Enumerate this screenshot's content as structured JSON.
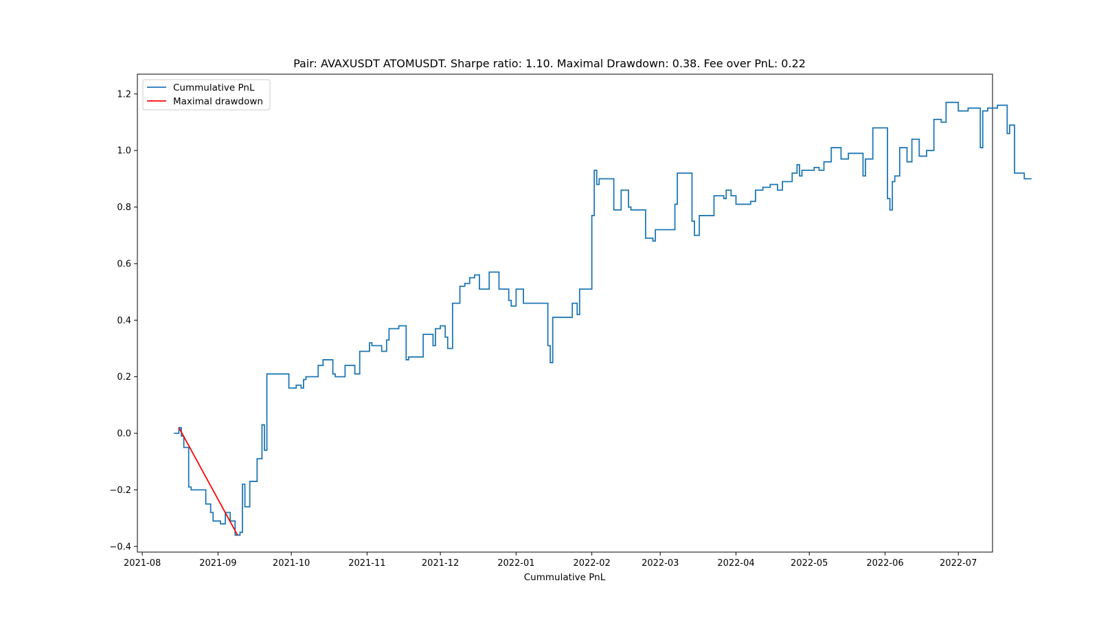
{
  "chart_data": {
    "type": "line",
    "title": "Pair: AVAXUSDT ATOMUSDT. Sharpe ratio: 1.10. Maximal Drawdown: 0.38. Fee over PnL: 0.22",
    "xlabel": "Cummulative PnL",
    "ylabel": "",
    "xlim": [
      "2021-07-30",
      "2022-07-15"
    ],
    "ylim": [
      -0.42,
      1.27
    ],
    "x_ticks": [
      "2021-08",
      "2021-09",
      "2021-10",
      "2021-11",
      "2021-12",
      "2022-01",
      "2022-02",
      "2022-03",
      "2022-04",
      "2022-05",
      "2022-06",
      "2022-07"
    ],
    "y_ticks": [
      "−0.4",
      "−0.2",
      "0.0",
      "0.2",
      "0.4",
      "0.6",
      "0.8",
      "1.0",
      "1.2"
    ],
    "grid": false,
    "legend": "top-left",
    "colors": {
      "pnl": "#1f77b4",
      "drawdown": "#ff0000"
    },
    "series": [
      {
        "name": "Cummulative PnL",
        "step": true,
        "points": [
          [
            "2021-08-14",
            0.0
          ],
          [
            "2021-08-16",
            0.02
          ],
          [
            "2021-08-17",
            -0.01
          ],
          [
            "2021-08-18",
            -0.05
          ],
          [
            "2021-08-20",
            -0.19
          ],
          [
            "2021-08-21",
            -0.2
          ],
          [
            "2021-08-27",
            -0.25
          ],
          [
            "2021-08-29",
            -0.28
          ],
          [
            "2021-08-30",
            -0.31
          ],
          [
            "2021-09-02",
            -0.32
          ],
          [
            "2021-09-04",
            -0.28
          ],
          [
            "2021-09-06",
            -0.31
          ],
          [
            "2021-09-08",
            -0.36
          ],
          [
            "2021-09-10",
            -0.35
          ],
          [
            "2021-09-11",
            -0.18
          ],
          [
            "2021-09-12",
            -0.26
          ],
          [
            "2021-09-14",
            -0.17
          ],
          [
            "2021-09-17",
            -0.09
          ],
          [
            "2021-09-19",
            0.03
          ],
          [
            "2021-09-20",
            -0.06
          ],
          [
            "2021-09-21",
            0.21
          ],
          [
            "2021-09-30",
            0.16
          ],
          [
            "2021-10-03",
            0.17
          ],
          [
            "2021-10-05",
            0.16
          ],
          [
            "2021-10-06",
            0.19
          ],
          [
            "2021-10-07",
            0.2
          ],
          [
            "2021-10-12",
            0.24
          ],
          [
            "2021-10-14",
            0.26
          ],
          [
            "2021-10-18",
            0.21
          ],
          [
            "2021-10-19",
            0.2
          ],
          [
            "2021-10-23",
            0.24
          ],
          [
            "2021-10-27",
            0.21
          ],
          [
            "2021-10-29",
            0.29
          ],
          [
            "2021-11-02",
            0.32
          ],
          [
            "2021-11-03",
            0.31
          ],
          [
            "2021-11-07",
            0.29
          ],
          [
            "2021-11-09",
            0.33
          ],
          [
            "2021-11-10",
            0.37
          ],
          [
            "2021-11-14",
            0.38
          ],
          [
            "2021-11-17",
            0.26
          ],
          [
            "2021-11-18",
            0.27
          ],
          [
            "2021-11-24",
            0.35
          ],
          [
            "2021-11-28",
            0.31
          ],
          [
            "2021-11-29",
            0.37
          ],
          [
            "2021-12-01",
            0.38
          ],
          [
            "2021-12-03",
            0.34
          ],
          [
            "2021-12-04",
            0.3
          ],
          [
            "2021-12-06",
            0.46
          ],
          [
            "2021-12-09",
            0.52
          ],
          [
            "2021-12-11",
            0.53
          ],
          [
            "2021-12-13",
            0.55
          ],
          [
            "2021-12-15",
            0.56
          ],
          [
            "2021-12-17",
            0.51
          ],
          [
            "2021-12-21",
            0.57
          ],
          [
            "2021-12-25",
            0.51
          ],
          [
            "2021-12-29",
            0.47
          ],
          [
            "2021-12-30",
            0.45
          ],
          [
            "2022-01-01",
            0.51
          ],
          [
            "2022-01-04",
            0.46
          ],
          [
            "2022-01-14",
            0.31
          ],
          [
            "2022-01-15",
            0.25
          ],
          [
            "2022-01-16",
            0.41
          ],
          [
            "2022-01-24",
            0.46
          ],
          [
            "2022-01-26",
            0.42
          ],
          [
            "2022-01-27",
            0.51
          ],
          [
            "2022-02-01",
            0.77
          ],
          [
            "2022-02-02",
            0.93
          ],
          [
            "2022-02-03",
            0.88
          ],
          [
            "2022-02-04",
            0.9
          ],
          [
            "2022-02-10",
            0.79
          ],
          [
            "2022-02-13",
            0.86
          ],
          [
            "2022-02-16",
            0.8
          ],
          [
            "2022-02-17",
            0.79
          ],
          [
            "2022-02-23",
            0.69
          ],
          [
            "2022-02-26",
            0.68
          ],
          [
            "2022-02-27",
            0.72
          ],
          [
            "2022-03-07",
            0.81
          ],
          [
            "2022-03-08",
            0.92
          ],
          [
            "2022-03-14",
            0.75
          ],
          [
            "2022-03-15",
            0.7
          ],
          [
            "2022-03-17",
            0.77
          ],
          [
            "2022-03-23",
            0.84
          ],
          [
            "2022-03-27",
            0.83
          ],
          [
            "2022-03-28",
            0.86
          ],
          [
            "2022-03-30",
            0.84
          ],
          [
            "2022-04-01",
            0.81
          ],
          [
            "2022-04-07",
            0.82
          ],
          [
            "2022-04-09",
            0.86
          ],
          [
            "2022-04-12",
            0.87
          ],
          [
            "2022-04-15",
            0.88
          ],
          [
            "2022-04-18",
            0.86
          ],
          [
            "2022-04-20",
            0.89
          ],
          [
            "2022-04-24",
            0.92
          ],
          [
            "2022-04-26",
            0.95
          ],
          [
            "2022-04-27",
            0.91
          ],
          [
            "2022-04-28",
            0.93
          ],
          [
            "2022-05-03",
            0.94
          ],
          [
            "2022-05-05",
            0.93
          ],
          [
            "2022-05-07",
            0.96
          ],
          [
            "2022-05-10",
            1.01
          ],
          [
            "2022-05-14",
            0.97
          ],
          [
            "2022-05-17",
            0.99
          ],
          [
            "2022-05-23",
            0.91
          ],
          [
            "2022-05-24",
            0.97
          ],
          [
            "2022-05-27",
            1.08
          ],
          [
            "2022-06-02",
            0.83
          ],
          [
            "2022-06-03",
            0.79
          ],
          [
            "2022-06-04",
            0.89
          ],
          [
            "2022-06-05",
            0.91
          ],
          [
            "2022-06-07",
            1.01
          ],
          [
            "2022-06-10",
            0.96
          ],
          [
            "2022-06-12",
            1.04
          ],
          [
            "2022-06-15",
            0.98
          ],
          [
            "2022-06-18",
            1.0
          ],
          [
            "2022-06-21",
            1.11
          ],
          [
            "2022-06-24",
            1.1
          ],
          [
            "2022-06-26",
            1.17
          ],
          [
            "2022-07-01",
            1.14
          ],
          [
            "2022-07-05",
            1.15
          ],
          [
            "2022-07-10",
            1.01
          ],
          [
            "2022-07-11",
            1.14
          ],
          [
            "2022-07-13",
            1.15
          ],
          [
            "2022-07-17",
            1.16
          ],
          [
            "2022-07-21",
            1.06
          ],
          [
            "2022-07-22",
            1.09
          ],
          [
            "2022-07-24",
            0.92
          ],
          [
            "2022-07-28",
            0.9
          ],
          [
            "2022-07-31",
            0.9
          ]
        ]
      },
      {
        "name": "Maximal drawdown",
        "step": false,
        "points": [
          [
            "2021-08-16",
            0.02
          ],
          [
            "2021-09-09",
            -0.36
          ]
        ]
      }
    ]
  }
}
